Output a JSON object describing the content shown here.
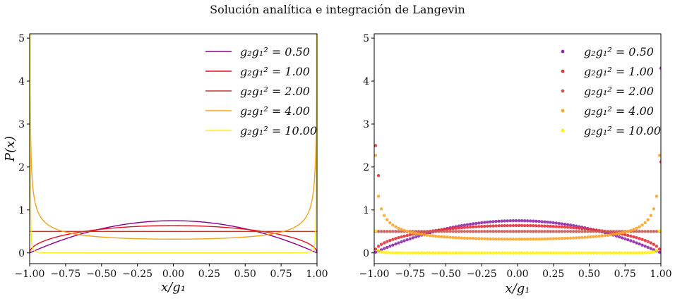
{
  "figure": {
    "suptitle": "Solución analítica e integración de Langevin"
  },
  "chart_data": [
    {
      "type": "line",
      "xlabel": "x/g₁",
      "ylabel": "P(x)",
      "xlim": [
        -1.0,
        1.0
      ],
      "ylim": [
        -0.25,
        5.1
      ],
      "xticks": [
        "−1.00",
        "−0.75",
        "−0.50",
        "−0.25",
        "0.00",
        "0.25",
        "0.50",
        "0.75",
        "1.00"
      ],
      "yticks": [
        "0",
        "1",
        "2",
        "3",
        "4",
        "5"
      ],
      "legend_position": "top-right",
      "grid": false,
      "series": [
        {
          "name": "g₂g₁² = 0.50",
          "color": "#8b008b",
          "alpha": 2.0
        },
        {
          "name": "g₂g₁² = 1.00",
          "color": "#e8101c",
          "alpha": 1.0
        },
        {
          "name": "g₂g₁² = 2.00",
          "color": "#c0392b",
          "alpha": 0.0
        },
        {
          "name": "g₂g₁² = 4.00",
          "color": "#f5a21a",
          "alpha": -1.0
        },
        {
          "name": "g₂g₁² = 10.00",
          "color": "#ffec1a",
          "alpha": -4.0
        }
      ]
    },
    {
      "type": "scatter",
      "xlabel": "x/g₁",
      "ylabel": "",
      "xlim": [
        -1.0,
        1.0
      ],
      "ylim": [
        -0.25,
        5.1
      ],
      "xticks": [
        "−1.00",
        "−0.75",
        "−0.50",
        "−0.25",
        "0.00",
        "0.25",
        "0.50",
        "0.75",
        "1.00"
      ],
      "yticks": [
        "0",
        "1",
        "2",
        "3",
        "4",
        "5"
      ],
      "legend_position": "top-right",
      "grid": false,
      "series": [
        {
          "name": "g₂g₁² = 0.50",
          "color": "#8e2ba8",
          "alpha": 2.0,
          "extra": [
            [
              1.0,
              4.3
            ]
          ]
        },
        {
          "name": "g₂g₁² = 1.00",
          "color": "#e8303c",
          "alpha": 1.0,
          "extra": [
            [
              -0.99,
              2.5
            ],
            [
              -0.97,
              1.8
            ],
            [
              1.0,
              2.12
            ]
          ]
        },
        {
          "name": "g₂g₁² = 2.00",
          "color": "#c85a55",
          "alpha": 0.0,
          "extra": []
        },
        {
          "name": "g₂g₁² = 4.00",
          "color": "#f8a52a",
          "alpha": -1.0,
          "extra": []
        },
        {
          "name": "g₂g₁² = 10.00",
          "color": "#fff200",
          "alpha": -4.0,
          "extra": []
        }
      ]
    }
  ]
}
